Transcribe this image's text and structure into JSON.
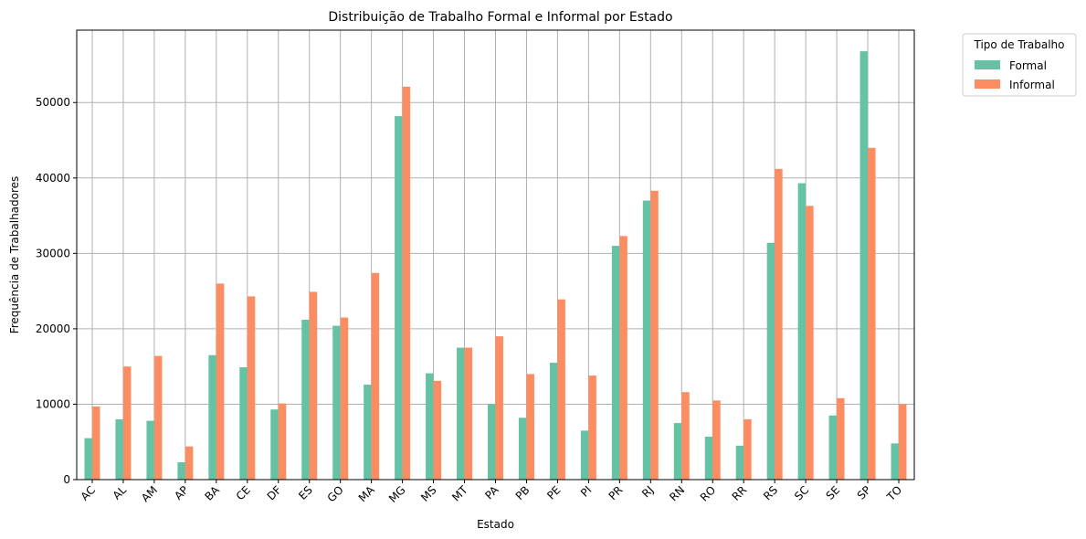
{
  "chart_data": {
    "type": "bar",
    "title": "Distribuição de Trabalho Formal e Informal por Estado",
    "xlabel": "Estado",
    "ylabel": "Frequência de Trabalhadores",
    "categories": [
      "AC",
      "AL",
      "AM",
      "AP",
      "BA",
      "CE",
      "DF",
      "ES",
      "GO",
      "MA",
      "MG",
      "MS",
      "MT",
      "PA",
      "PB",
      "PE",
      "PI",
      "PR",
      "RJ",
      "RN",
      "RO",
      "RR",
      "RS",
      "SC",
      "SE",
      "SP",
      "TO"
    ],
    "series": [
      {
        "name": "Formal",
        "color": "#66c2a5",
        "values": [
          5500,
          8000,
          7800,
          2300,
          16500,
          14900,
          9300,
          21200,
          20400,
          12600,
          48200,
          14100,
          17500,
          10000,
          8200,
          15500,
          6500,
          31000,
          37000,
          7500,
          5700,
          4500,
          31400,
          39300,
          8500,
          56800,
          4800
        ]
      },
      {
        "name": "Informal",
        "color": "#fc8d62",
        "values": [
          9700,
          15000,
          16400,
          4400,
          26000,
          24300,
          10100,
          24900,
          21500,
          27400,
          52100,
          13100,
          17500,
          19000,
          14000,
          23900,
          13800,
          32300,
          38300,
          11600,
          10500,
          8000,
          41200,
          36300,
          10800,
          44000,
          10000
        ]
      }
    ],
    "ylim": [
      0,
      59600
    ],
    "yticks": [
      0,
      10000,
      20000,
      30000,
      40000,
      50000
    ],
    "grid": true,
    "legend": {
      "title": "Tipo de Trabalho",
      "placement": "outside-top-right"
    }
  }
}
